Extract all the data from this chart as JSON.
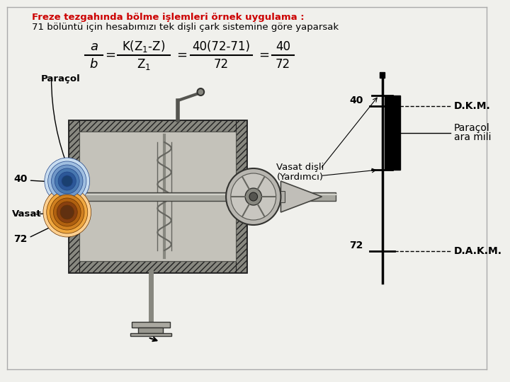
{
  "bg_color": "#f0f0ec",
  "title_red": "Freze tezgahında bölme işlemleri örnek uygulama :",
  "title_black": "71 bölüntü için hesabımızı tek dişli çark sistemine göre yaparsak",
  "label_paracol": "Paraçol",
  "label_vasat": "Vasat",
  "label_40_left": "40",
  "label_72_left": "72",
  "label_40_right": "40",
  "label_72_right": "72",
  "label_vasat_disli": "Vasat dişli",
  "label_yardimci": "(Yardımcı)",
  "label_dkm": "D.K.M.",
  "label_paracol_ara1": "Paraçol",
  "label_paracol_ara2": "ara mili",
  "label_dakm": "D.A.K.M."
}
